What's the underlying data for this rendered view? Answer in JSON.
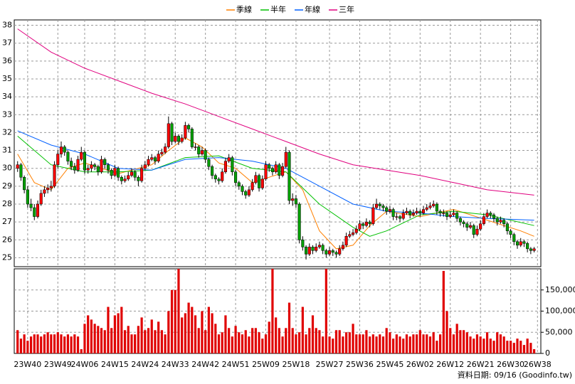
{
  "chart_data": {
    "type": "candlestick",
    "footnote": "資料日期: 09/16  (Goodinfo.tw)",
    "xlim": [
      -1,
      156
    ],
    "xticks": [
      {
        "value": 3,
        "label": "23W40"
      },
      {
        "value": 12,
        "label": "23W49"
      },
      {
        "value": 20,
        "label": "24W06"
      },
      {
        "value": 29,
        "label": "24W15"
      },
      {
        "value": 38,
        "label": "24W24"
      },
      {
        "value": 47,
        "label": "24W33"
      },
      {
        "value": 56,
        "label": "24W42"
      },
      {
        "value": 65,
        "label": "24W51"
      },
      {
        "value": 74,
        "label": "25W09"
      },
      {
        "value": 83,
        "label": "25W18"
      },
      {
        "value": 93,
        "label": "25W27"
      },
      {
        "value": 102,
        "label": "25W36"
      },
      {
        "value": 111,
        "label": "25W45"
      },
      {
        "value": 120,
        "label": "26W02"
      },
      {
        "value": 129,
        "label": "26W12"
      },
      {
        "value": 138,
        "label": "26W21"
      },
      {
        "value": 147,
        "label": "26W30"
      },
      {
        "value": 155,
        "label": "26W38"
      }
    ],
    "ylim": [
      24.5,
      38.3
    ],
    "yticks": [
      25,
      26,
      27,
      28,
      29,
      30,
      31,
      32,
      33,
      34,
      35,
      36,
      37,
      38
    ],
    "grid": true,
    "up_color": "#ff0000",
    "down_color": "#00a000",
    "wick_color": "#000000",
    "ohlc": [
      [
        30.0,
        30.4,
        29.8,
        30.2
      ],
      [
        30.2,
        30.3,
        29.3,
        29.5
      ],
      [
        29.5,
        29.6,
        28.6,
        28.8
      ],
      [
        28.8,
        29.0,
        27.8,
        28.0
      ],
      [
        28.0,
        28.3,
        27.6,
        27.8
      ],
      [
        27.8,
        28.0,
        27.1,
        27.3
      ],
      [
        27.3,
        28.2,
        27.2,
        28.0
      ],
      [
        28.0,
        28.8,
        27.9,
        28.6
      ],
      [
        28.6,
        29.0,
        28.4,
        28.8
      ],
      [
        28.8,
        29.1,
        28.6,
        28.9
      ],
      [
        28.9,
        29.3,
        28.7,
        29.0
      ],
      [
        29.0,
        30.4,
        28.9,
        30.2
      ],
      [
        30.2,
        31.0,
        30.0,
        30.8
      ],
      [
        30.8,
        31.5,
        30.6,
        31.2
      ],
      [
        31.2,
        31.3,
        30.7,
        30.9
      ],
      [
        30.9,
        31.0,
        30.2,
        30.4
      ],
      [
        30.4,
        30.6,
        29.9,
        30.1
      ],
      [
        30.1,
        30.3,
        29.7,
        29.9
      ],
      [
        29.9,
        30.7,
        29.8,
        30.5
      ],
      [
        30.5,
        31.2,
        30.4,
        30.9
      ],
      [
        30.9,
        31.0,
        29.7,
        29.9
      ],
      [
        29.9,
        30.2,
        29.7,
        30.0
      ],
      [
        30.0,
        30.4,
        29.8,
        30.2
      ],
      [
        30.2,
        30.3,
        29.9,
        30.1
      ],
      [
        30.1,
        30.2,
        29.6,
        29.8
      ],
      [
        29.8,
        30.7,
        29.7,
        30.5
      ],
      [
        30.5,
        30.6,
        30.0,
        30.2
      ],
      [
        30.2,
        30.3,
        29.7,
        29.9
      ],
      [
        29.9,
        30.0,
        29.4,
        29.6
      ],
      [
        29.6,
        30.2,
        29.5,
        30.0
      ],
      [
        30.0,
        30.1,
        29.3,
        29.5
      ],
      [
        29.5,
        29.6,
        29.1,
        29.3
      ],
      [
        29.3,
        29.6,
        29.2,
        29.4
      ],
      [
        29.4,
        29.8,
        29.3,
        29.6
      ],
      [
        29.6,
        30.0,
        29.5,
        29.8
      ],
      [
        29.8,
        29.9,
        29.3,
        29.5
      ],
      [
        29.5,
        29.6,
        29.0,
        29.3
      ],
      [
        29.3,
        30.2,
        29.2,
        30.0
      ],
      [
        30.0,
        30.4,
        29.9,
        30.2
      ],
      [
        30.2,
        30.7,
        30.1,
        30.5
      ],
      [
        30.5,
        30.8,
        30.4,
        30.6
      ],
      [
        30.6,
        30.7,
        30.2,
        30.4
      ],
      [
        30.4,
        31.0,
        30.3,
        30.8
      ],
      [
        30.8,
        31.1,
        30.7,
        30.9
      ],
      [
        30.9,
        31.4,
        30.8,
        31.2
      ],
      [
        31.2,
        32.9,
        31.1,
        32.5
      ],
      [
        32.5,
        32.6,
        31.3,
        31.5
      ],
      [
        31.5,
        32.0,
        31.4,
        31.8
      ],
      [
        31.8,
        31.9,
        31.3,
        31.5
      ],
      [
        31.5,
        31.9,
        31.4,
        31.7
      ],
      [
        31.7,
        32.6,
        31.6,
        32.4
      ],
      [
        32.4,
        32.5,
        32.0,
        32.2
      ],
      [
        32.2,
        32.3,
        31.1,
        31.2
      ],
      [
        31.2,
        31.4,
        31.0,
        31.2
      ],
      [
        31.2,
        31.3,
        30.6,
        30.8
      ],
      [
        30.8,
        31.2,
        30.7,
        31.0
      ],
      [
        31.0,
        31.1,
        30.3,
        30.5
      ],
      [
        30.5,
        30.6,
        29.9,
        30.1
      ],
      [
        30.1,
        30.2,
        29.4,
        29.6
      ],
      [
        29.6,
        29.7,
        29.2,
        29.4
      ],
      [
        29.4,
        29.5,
        29.1,
        29.3
      ],
      [
        29.3,
        30.0,
        29.2,
        29.8
      ],
      [
        29.8,
        30.6,
        29.7,
        30.4
      ],
      [
        30.4,
        30.8,
        30.3,
        30.6
      ],
      [
        30.6,
        30.7,
        29.6,
        29.8
      ],
      [
        29.8,
        29.9,
        29.0,
        29.2
      ],
      [
        29.2,
        29.3,
        28.8,
        29.0
      ],
      [
        29.0,
        29.1,
        28.5,
        28.7
      ],
      [
        28.7,
        28.8,
        28.3,
        28.5
      ],
      [
        28.5,
        29.0,
        28.4,
        28.8
      ],
      [
        28.8,
        29.4,
        28.7,
        29.2
      ],
      [
        29.2,
        29.8,
        29.1,
        29.6
      ],
      [
        29.6,
        29.7,
        28.7,
        28.9
      ],
      [
        28.9,
        29.6,
        28.8,
        29.4
      ],
      [
        29.4,
        30.4,
        29.3,
        30.2
      ],
      [
        30.2,
        30.3,
        29.8,
        30.0
      ],
      [
        30.0,
        30.1,
        29.6,
        29.8
      ],
      [
        29.8,
        30.4,
        29.7,
        30.2
      ],
      [
        30.2,
        30.3,
        29.4,
        29.6
      ],
      [
        29.6,
        30.3,
        29.5,
        30.1
      ],
      [
        30.1,
        31.2,
        30.0,
        30.9
      ],
      [
        30.9,
        31.0,
        28.0,
        28.2
      ],
      [
        28.2,
        28.6,
        27.9,
        28.3
      ],
      [
        28.3,
        28.5,
        27.8,
        28.0
      ],
      [
        28.0,
        28.1,
        25.8,
        26.0
      ],
      [
        26.0,
        26.2,
        25.4,
        25.6
      ],
      [
        25.6,
        25.7,
        24.9,
        25.2
      ],
      [
        25.2,
        25.8,
        25.1,
        25.6
      ],
      [
        25.6,
        25.7,
        25.2,
        25.4
      ],
      [
        25.4,
        25.8,
        25.3,
        25.6
      ],
      [
        25.6,
        25.9,
        25.5,
        25.7
      ],
      [
        25.7,
        25.8,
        25.2,
        25.4
      ],
      [
        25.4,
        25.5,
        25.0,
        25.2
      ],
      [
        25.2,
        25.6,
        25.1,
        25.4
      ],
      [
        25.4,
        25.5,
        25.1,
        25.3
      ],
      [
        25.3,
        25.4,
        25.0,
        25.2
      ],
      [
        25.2,
        25.7,
        25.1,
        25.5
      ],
      [
        25.5,
        25.9,
        25.4,
        25.7
      ],
      [
        25.7,
        26.4,
        25.6,
        26.2
      ],
      [
        26.2,
        26.5,
        26.1,
        26.3
      ],
      [
        26.3,
        26.6,
        26.2,
        26.4
      ],
      [
        26.4,
        26.8,
        26.3,
        26.6
      ],
      [
        26.6,
        27.1,
        26.5,
        26.9
      ],
      [
        26.9,
        27.0,
        26.6,
        26.8
      ],
      [
        26.8,
        27.2,
        26.7,
        27.0
      ],
      [
        27.0,
        27.1,
        26.7,
        26.9
      ],
      [
        26.9,
        28.0,
        26.8,
        27.8
      ],
      [
        27.8,
        28.3,
        27.7,
        28.0
      ],
      [
        28.0,
        28.1,
        27.7,
        27.9
      ],
      [
        27.9,
        28.0,
        27.6,
        27.8
      ],
      [
        27.8,
        27.9,
        27.4,
        27.6
      ],
      [
        27.6,
        27.9,
        27.5,
        27.7
      ],
      [
        27.7,
        27.8,
        27.1,
        27.3
      ],
      [
        27.3,
        27.5,
        27.1,
        27.3
      ],
      [
        27.3,
        27.4,
        27.0,
        27.2
      ],
      [
        27.2,
        27.7,
        27.1,
        27.5
      ],
      [
        27.5,
        27.8,
        27.4,
        27.6
      ],
      [
        27.6,
        27.7,
        27.2,
        27.4
      ],
      [
        27.4,
        27.7,
        27.3,
        27.5
      ],
      [
        27.5,
        27.8,
        27.4,
        27.6
      ],
      [
        27.6,
        27.7,
        27.3,
        27.5
      ],
      [
        27.5,
        27.9,
        27.4,
        27.7
      ],
      [
        27.7,
        28.0,
        27.6,
        27.8
      ],
      [
        27.8,
        28.1,
        27.7,
        27.9
      ],
      [
        27.9,
        28.2,
        27.8,
        28.0
      ],
      [
        28.0,
        28.1,
        27.4,
        27.6
      ],
      [
        27.6,
        27.7,
        27.3,
        27.5
      ],
      [
        27.5,
        27.7,
        27.3,
        27.5
      ],
      [
        27.5,
        27.6,
        27.1,
        27.3
      ],
      [
        27.3,
        27.6,
        27.2,
        27.4
      ],
      [
        27.4,
        27.7,
        27.3,
        27.5
      ],
      [
        27.5,
        27.6,
        27.0,
        27.2
      ],
      [
        27.2,
        27.3,
        26.8,
        27.0
      ],
      [
        27.0,
        27.1,
        26.7,
        26.9
      ],
      [
        26.9,
        27.0,
        26.5,
        26.7
      ],
      [
        26.7,
        27.0,
        26.6,
        26.8
      ],
      [
        26.8,
        26.9,
        26.1,
        26.3
      ],
      [
        26.3,
        26.8,
        26.2,
        26.6
      ],
      [
        26.6,
        27.1,
        26.5,
        26.9
      ],
      [
        26.9,
        27.5,
        26.8,
        27.3
      ],
      [
        27.3,
        27.7,
        27.2,
        27.5
      ],
      [
        27.5,
        27.6,
        27.2,
        27.4
      ],
      [
        27.4,
        27.5,
        27.0,
        27.2
      ],
      [
        27.2,
        27.3,
        26.8,
        27.0
      ],
      [
        27.0,
        27.3,
        26.9,
        27.1
      ],
      [
        27.1,
        27.2,
        26.7,
        26.9
      ],
      [
        26.9,
        27.0,
        26.3,
        26.5
      ],
      [
        26.5,
        26.6,
        26.1,
        26.3
      ],
      [
        26.3,
        26.4,
        25.7,
        25.9
      ],
      [
        25.9,
        26.0,
        25.5,
        25.7
      ],
      [
        25.7,
        26.1,
        25.6,
        25.9
      ],
      [
        25.9,
        26.0,
        25.6,
        25.8
      ],
      [
        25.8,
        25.9,
        25.3,
        25.5
      ],
      [
        25.5,
        25.6,
        25.2,
        25.4
      ],
      [
        25.4,
        25.6,
        25.3,
        25.5
      ]
    ],
    "series": [
      {
        "name": "季線",
        "color": "#ff8000",
        "x": [
          0,
          5,
          10,
          15,
          20,
          30,
          40,
          45,
          50,
          55,
          60,
          65,
          70,
          80,
          85,
          90,
          95,
          100,
          105,
          110,
          120,
          130,
          140,
          150,
          154
        ],
        "values": [
          30.8,
          29.2,
          28.8,
          30.0,
          30.3,
          29.7,
          30.2,
          31.0,
          31.7,
          31.2,
          30.3,
          30.0,
          29.2,
          29.8,
          28.8,
          26.5,
          25.5,
          25.7,
          26.8,
          27.6,
          27.3,
          27.7,
          27.1,
          26.5,
          26.2
        ]
      },
      {
        "name": "半年",
        "color": "#00c000",
        "x": [
          0,
          10,
          20,
          30,
          40,
          50,
          60,
          70,
          80,
          90,
          100,
          105,
          110,
          120,
          130,
          140,
          154
        ],
        "values": [
          31.8,
          30.2,
          29.8,
          29.8,
          29.9,
          30.6,
          30.7,
          30.0,
          29.8,
          28.0,
          26.7,
          26.2,
          26.5,
          27.4,
          27.6,
          27.4,
          26.8
        ]
      },
      {
        "name": "年線",
        "color": "#0060ff",
        "x": [
          0,
          10,
          20,
          30,
          40,
          50,
          60,
          70,
          80,
          90,
          100,
          110,
          120,
          130,
          140,
          154
        ],
        "values": [
          32.1,
          31.3,
          30.8,
          30.0,
          29.9,
          30.5,
          30.6,
          30.4,
          30.0,
          29.0,
          28.0,
          27.6,
          27.5,
          27.3,
          27.2,
          27.1
        ]
      },
      {
        "name": "三年",
        "color": "#e0007f",
        "x": [
          0,
          10,
          20,
          30,
          40,
          50,
          60,
          70,
          80,
          90,
          100,
          110,
          120,
          130,
          140,
          154
        ],
        "values": [
          37.8,
          36.5,
          35.6,
          34.9,
          34.2,
          33.6,
          32.9,
          32.2,
          31.5,
          30.8,
          30.2,
          29.9,
          29.6,
          29.2,
          28.8,
          28.5
        ]
      }
    ],
    "volume": {
      "color": "#e00000",
      "ylim": [
        0,
        200000
      ],
      "yticks": [
        0,
        {
          "value": 50000,
          "label": "50,000"
        },
        {
          "value": 100000,
          "label": "100,000"
        },
        {
          "value": 150000,
          "label": "150,000"
        }
      ],
      "values": [
        55000,
        35000,
        45000,
        30000,
        40000,
        45000,
        45000,
        40000,
        45000,
        50000,
        45000,
        45000,
        50000,
        45000,
        40000,
        45000,
        40000,
        45000,
        40000,
        10000,
        70000,
        90000,
        80000,
        70000,
        65000,
        60000,
        55000,
        110000,
        60000,
        90000,
        95000,
        110000,
        55000,
        65000,
        45000,
        45000,
        65000,
        85000,
        55000,
        60000,
        80000,
        55000,
        75000,
        55000,
        45000,
        100000,
        150000,
        150000,
        200000,
        85000,
        95000,
        120000,
        110000,
        90000,
        60000,
        100000,
        55000,
        110000,
        95000,
        70000,
        45000,
        50000,
        90000,
        60000,
        40000,
        65000,
        50000,
        45000,
        55000,
        40000,
        60000,
        60000,
        50000,
        35000,
        45000,
        75000,
        200000,
        85000,
        60000,
        40000,
        60000,
        120000,
        60000,
        45000,
        50000,
        110000,
        45000,
        60000,
        90000,
        60000,
        55000,
        40000,
        200000,
        40000,
        35000,
        55000,
        55000,
        40000,
        50000,
        50000,
        70000,
        45000,
        45000,
        45000,
        55000,
        40000,
        45000,
        40000,
        45000,
        40000,
        60000,
        50000,
        35000,
        45000,
        40000,
        35000,
        45000,
        40000,
        45000,
        45000,
        55000,
        45000,
        45000,
        40000,
        50000,
        30000,
        45000,
        195000,
        100000,
        60000,
        45000,
        70000,
        55000,
        55000,
        50000,
        40000,
        35000,
        45000,
        40000,
        35000,
        50000,
        35000,
        30000,
        50000,
        45000,
        40000,
        30000,
        30000,
        25000,
        35000,
        30000,
        20000,
        35000,
        25000,
        10000
      ]
    }
  }
}
